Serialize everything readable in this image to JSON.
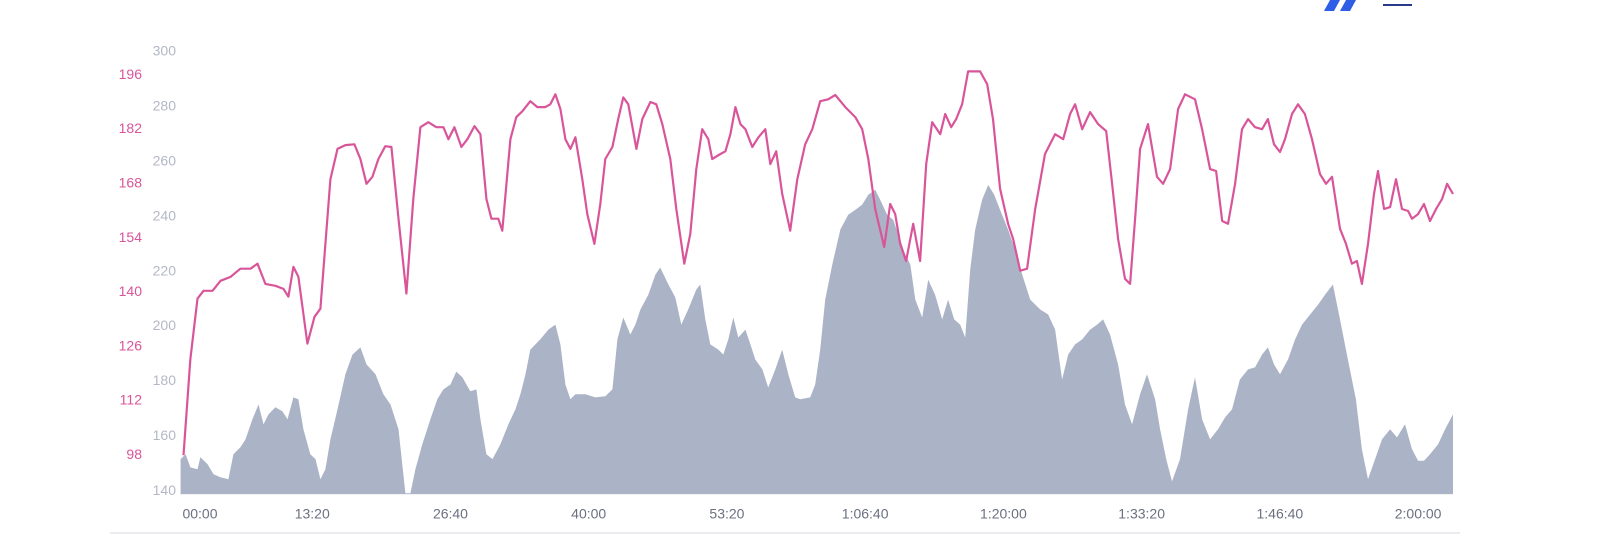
{
  "chart_data": {
    "type": "line",
    "xlim": [
      0,
      7402
    ],
    "ylim": [
      88,
      202
    ],
    "y2lim": [
      139,
      300
    ],
    "xticks": [
      {
        "value": 0,
        "label": "00:00"
      },
      {
        "value": 800,
        "label": "13:20"
      },
      {
        "value": 1600,
        "label": "26:40"
      },
      {
        "value": 2400,
        "label": "40:00"
      },
      {
        "value": 3200,
        "label": "53:20"
      },
      {
        "value": 4000,
        "label": "1:06:40"
      },
      {
        "value": 4800,
        "label": "1:20:00"
      },
      {
        "value": 5600,
        "label": "1:33:20"
      },
      {
        "value": 6400,
        "label": "1:46:40"
      },
      {
        "value": 7200,
        "label": "2:00:00"
      }
    ],
    "yticks": [
      98,
      112,
      126,
      140,
      154,
      168,
      182,
      196
    ],
    "y2ticks": [
      140,
      160,
      180,
      200,
      220,
      240,
      260,
      280,
      300
    ],
    "ytick_color": "#d9559a",
    "y2tick_color": "#b4b8c6",
    "series": [
      {
        "type": "area",
        "axis": "y2",
        "color": "#abb3c7",
        "x": [
          38,
          67,
          95,
          136,
          153,
          194,
          229,
          269,
          315,
          344,
          384,
          414,
          454,
          489,
          518,
          547,
          587,
          628,
          657,
          691,
          720,
          749,
          789,
          819,
          847,
          876,
          905,
          946,
          992,
          1033,
          1079,
          1114,
          1166,
          1212,
          1253,
          1299,
          1339,
          1368,
          1397,
          1437,
          1484,
          1524,
          1559,
          1600,
          1634,
          1669,
          1715,
          1750,
          1773,
          1808,
          1843,
          1889,
          1935,
          1976,
          2005,
          2034,
          2062,
          2120,
          2166,
          2207,
          2236,
          2265,
          2294,
          2323,
          2381,
          2439,
          2496,
          2537,
          2566,
          2600,
          2641,
          2670,
          2699,
          2745,
          2786,
          2814,
          2861,
          2901,
          2936,
          2976,
          3023,
          3046,
          3075,
          3104,
          3150,
          3179,
          3208,
          3237,
          3266,
          3307,
          3336,
          3364,
          3405,
          3439,
          3480,
          3520,
          3555,
          3595,
          3624,
          3682,
          3711,
          3740,
          3769,
          3810,
          3856,
          3902,
          3943,
          3983,
          4018,
          4058,
          4087,
          4127,
          4162,
          4203,
          4232,
          4261,
          4290,
          4330,
          4365,
          4405,
          4446,
          4480,
          4515,
          4550,
          4579,
          4608,
          4637,
          4677,
          4712,
          4747,
          4781,
          4827,
          4868,
          4909,
          4955,
          5013,
          5059,
          5099,
          5140,
          5175,
          5215,
          5256,
          5302,
          5342,
          5377,
          5417,
          5464,
          5504,
          5545,
          5591,
          5631,
          5678,
          5707,
          5742,
          5776,
          5822,
          5869,
          5909,
          5950,
          5996,
          6042,
          6083,
          6123,
          6169,
          6216,
          6256,
          6297,
          6331,
          6366,
          6401,
          6447,
          6488,
          6528,
          6575,
          6621,
          6661,
          6707,
          6748,
          6794,
          6840,
          6875,
          6910,
          6951,
          6991,
          7038,
          7078,
          7124,
          7165,
          7200,
          7234,
          7269,
          7316,
          7356,
          7402
        ],
        "values": [
          151.7,
          153.5,
          148.7,
          148.0,
          152.4,
          149.9,
          146.2,
          145.1,
          144.4,
          153.5,
          156.0,
          158.9,
          166.2,
          171.6,
          164.4,
          168.0,
          170.6,
          169.1,
          166.2,
          174.2,
          173.5,
          162.6,
          153.5,
          151.7,
          144.4,
          148.0,
          158.9,
          169.8,
          182.6,
          189.8,
          192.4,
          186.2,
          182.6,
          175.3,
          171.6,
          162.6,
          139.3,
          139.3,
          148.0,
          157.1,
          166.2,
          173.5,
          177.1,
          178.9,
          183.6,
          181.5,
          176.4,
          177.1,
          166.2,
          153.5,
          151.7,
          157.1,
          164.4,
          169.8,
          175.3,
          182.6,
          191.6,
          195.3,
          198.9,
          200.7,
          193.5,
          178.9,
          173.5,
          175.3,
          175.3,
          174.2,
          174.6,
          177.1,
          195.3,
          203.3,
          197.1,
          200.7,
          206.2,
          211.6,
          218.9,
          221.5,
          215.3,
          210.6,
          200.7,
          206.2,
          213.5,
          215.3,
          202.6,
          193.5,
          191.6,
          189.8,
          195.3,
          203.3,
          196.0,
          198.9,
          193.5,
          188.0,
          184.4,
          177.8,
          184.4,
          191.6,
          182.6,
          174.2,
          173.5,
          174.2,
          178.9,
          191.6,
          209.8,
          222.6,
          235.3,
          240.7,
          242.5,
          244.4,
          248.0,
          249.8,
          246.2,
          240.7,
          238.9,
          231.6,
          226.2,
          222.6,
          209.8,
          203.3,
          217.1,
          211.6,
          202.6,
          209.8,
          202.6,
          200.7,
          196.0,
          220.7,
          235.3,
          246.2,
          251.6,
          248.0,
          242.5,
          235.3,
          228.0,
          218.9,
          209.8,
          206.2,
          204.4,
          198.9,
          180.7,
          189.8,
          193.5,
          195.3,
          198.9,
          200.7,
          202.6,
          197.1,
          186.2,
          171.6,
          164.4,
          175.3,
          182.6,
          173.5,
          162.6,
          151.7,
          143.6,
          151.7,
          169.8,
          181.5,
          166.2,
          158.9,
          162.6,
          166.9,
          169.8,
          180.7,
          184.4,
          185.1,
          189.8,
          192.4,
          186.2,
          182.6,
          188.0,
          195.3,
          200.7,
          204.4,
          208.0,
          211.6,
          215.3,
          202.6,
          188.0,
          173.5,
          155.3,
          144.4,
          151.7,
          158.9,
          162.6,
          159.6,
          164.4,
          155.3,
          151.1,
          151.1,
          153.5,
          157.1,
          162.6,
          168.0
        ]
      },
      {
        "type": "line",
        "axis": "y",
        "color": "#d9559a",
        "x": [
          55,
          95,
          136,
          171,
          223,
          269,
          327,
          384,
          443,
          483,
          529,
          587,
          634,
          662,
          691,
          720,
          772,
          813,
          847,
          905,
          946,
          992,
          1044,
          1079,
          1114,
          1148,
          1183,
          1223,
          1258,
          1299,
          1345,
          1385,
          1426,
          1472,
          1518,
          1559,
          1588,
          1623,
          1663,
          1698,
          1739,
          1773,
          1808,
          1837,
          1877,
          1900,
          1947,
          1981,
          2016,
          2062,
          2103,
          2149,
          2178,
          2207,
          2236,
          2265,
          2294,
          2323,
          2363,
          2392,
          2433,
          2467,
          2496,
          2537,
          2571,
          2600,
          2629,
          2676,
          2710,
          2757,
          2791,
          2826,
          2872,
          2907,
          2953,
          2988,
          3023,
          3057,
          3092,
          3115,
          3162,
          3191,
          3220,
          3249,
          3278,
          3307,
          3347,
          3382,
          3422,
          3451,
          3485,
          3520,
          3566,
          3607,
          3653,
          3694,
          3740,
          3786,
          3827,
          3885,
          3943,
          3983,
          4018,
          4058,
          4110,
          4145,
          4174,
          4203,
          4237,
          4278,
          4318,
          4353,
          4388,
          4434,
          4463,
          4498,
          4527,
          4561,
          4596,
          4665,
          4706,
          4740,
          4781,
          4827,
          4856,
          4897,
          4937,
          4984,
          5041,
          5099,
          5146,
          5186,
          5215,
          5256,
          5302,
          5348,
          5395,
          5429,
          5464,
          5504,
          5533,
          5562,
          5591,
          5637,
          5689,
          5724,
          5765,
          5811,
          5851,
          5909,
          5950,
          5996,
          6031,
          6066,
          6100,
          6141,
          6181,
          6216,
          6256,
          6297,
          6331,
          6366,
          6401,
          6430,
          6470,
          6505,
          6545,
          6586,
          6632,
          6667,
          6702,
          6748,
          6783,
          6817,
          6846,
          6875,
          6910,
          6945,
          6968,
          7003,
          7038,
          7072,
          7107,
          7142,
          7165,
          7200,
          7234,
          7269,
          7304,
          7339,
          7368,
          7402
        ],
        "values": [
          98,
          122.9,
          138.4,
          140.4,
          140.4,
          143.0,
          144.0,
          146.1,
          146.1,
          147.4,
          142.2,
          141.7,
          140.9,
          138.9,
          146.6,
          144.0,
          126.8,
          133.7,
          135.8,
          169.2,
          177.0,
          178.0,
          178.2,
          174.4,
          168.0,
          169.8,
          174.4,
          177.7,
          177.5,
          159.0,
          139.7,
          164.1,
          182.6,
          183.9,
          182.6,
          182.6,
          179.5,
          182.6,
          177.5,
          179.5,
          182.9,
          180.8,
          164.1,
          159.0,
          159.0,
          155.9,
          179.5,
          185.2,
          186.7,
          189.3,
          187.8,
          187.8,
          188.5,
          191.1,
          187.3,
          179.5,
          177.0,
          180.0,
          169.2,
          160.2,
          152.5,
          162.8,
          174.4,
          177.5,
          184.7,
          190.3,
          188.5,
          177.0,
          184.7,
          189.1,
          188.5,
          183.4,
          174.4,
          161.5,
          147.4,
          155.1,
          171.8,
          182.1,
          179.5,
          174.4,
          175.7,
          176.4,
          180.8,
          187.8,
          183.4,
          182.1,
          177.5,
          180.0,
          182.1,
          173.1,
          176.4,
          165.4,
          155.9,
          169.2,
          178.2,
          182.1,
          189.3,
          189.8,
          190.9,
          187.8,
          185.2,
          182.1,
          174.4,
          161.5,
          151.7,
          162.8,
          160.2,
          152.5,
          148.1,
          157.7,
          148.1,
          173.1,
          183.9,
          180.8,
          186.0,
          182.6,
          184.7,
          188.5,
          197.0,
          197.0,
          193.7,
          184.7,
          166.7,
          157.7,
          153.8,
          145.6,
          146.1,
          161.5,
          175.7,
          180.8,
          179.5,
          186.0,
          188.5,
          182.1,
          186.5,
          183.4,
          181.6,
          168.0,
          153.8,
          143.5,
          142.2,
          159.0,
          177.0,
          183.4,
          169.8,
          168.0,
          171.8,
          187.3,
          191.1,
          189.8,
          182.1,
          171.8,
          171.3,
          158.4,
          157.7,
          168.0,
          182.1,
          184.7,
          182.6,
          182.1,
          184.7,
          178.2,
          176.2,
          179.5,
          186.0,
          188.5,
          186.0,
          179.5,
          170.5,
          168.0,
          169.8,
          156.4,
          152.5,
          147.4,
          148.1,
          142.2,
          152.5,
          165.4,
          171.3,
          161.5,
          162.0,
          169.2,
          161.5,
          161.0,
          159.0,
          160.2,
          162.8,
          158.4,
          161.5,
          164.1,
          168.0,
          165.4
        ]
      }
    ]
  }
}
